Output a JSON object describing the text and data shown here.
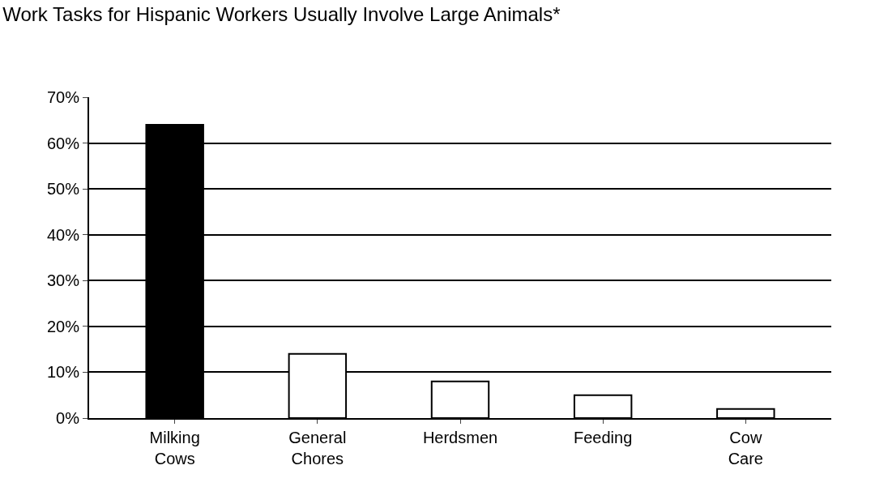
{
  "chart_data": {
    "type": "bar",
    "title": "Work Tasks for Hispanic Workers Usually Involve Large Animals*",
    "categories": [
      "Milking Cows",
      "General Chores",
      "Herdsmen",
      "Feeding",
      "Cow Care"
    ],
    "values": [
      64,
      14,
      8,
      5,
      2
    ],
    "colors": [
      "#000000",
      "#ffffff",
      "#ffffff",
      "#ffffff",
      "#ffffff"
    ],
    "ylim": [
      0,
      70
    ],
    "yticks": [
      {
        "value": 0,
        "label": "0%"
      },
      {
        "value": 10,
        "label": "10%"
      },
      {
        "value": 20,
        "label": "20%"
      },
      {
        "value": 30,
        "label": "30%"
      },
      {
        "value": 40,
        "label": "40%"
      },
      {
        "value": 50,
        "label": "50%"
      },
      {
        "value": 60,
        "label": "60%"
      },
      {
        "value": 70,
        "label": "70%"
      }
    ],
    "grid": "y"
  }
}
